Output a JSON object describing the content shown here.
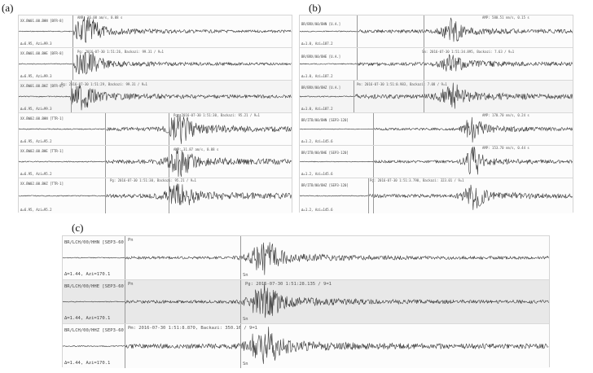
{
  "labels": {
    "a": "(a)",
    "b": "(b)",
    "c": "(c)"
  },
  "panel_a": {
    "rows": [
      {
        "name": "XX.BW01.00.BHN [BFR-8]",
        "info": "Δ=6.95, Azi=99.3",
        "picks": [
          {
            "text": "ANR: 36.00 am/s, 0.08 s"
          }
        ]
      },
      {
        "name": "XX.BW01.00.BHE [BFR-8]",
        "info": "Δ=6.95, Azi=99.3",
        "picks": [
          {
            "text": "Pg: 2016-07-30 1:51:26, Backazi: 99.31 / 9=1"
          }
        ]
      },
      {
        "name": "XX.BW01.00.BHZ [BFR-8]",
        "info": "Δ=6.95, Azi=99.3",
        "picks": [
          {
            "text": "Pg: 2016-07-30 1:51:29, Backazi: 99.31 / 9=1"
          }
        ]
      },
      {
        "name": "XX.BW02.00.BHN [TTR-1]",
        "info": "Δ=6.95, Azi=95.2",
        "picks": [
          {
            "text": "Pg: 2016-07-30 1:51:30, Backazi: 95.21 / 9=1"
          }
        ]
      },
      {
        "name": "XX.BW02.00.BHE [TTR-1]",
        "info": "Δ=6.95, Azi=95.2",
        "picks": [
          {
            "text": "AMP: 31.87 am/s, 0.08 s"
          }
        ]
      },
      {
        "name": "XX.BW02.00.BHZ [TTR-1]",
        "info": "Δ=6.95, Azi=95.2",
        "picks": [
          {
            "text": "Pg: 2016-07-30 1:51:30, Backazi: 95.21 / 9=1"
          }
        ]
      }
    ]
  },
  "panel_b": {
    "rows": [
      {
        "name": "BR/BRX/00/BHN [U.A.]",
        "info": "Δ=1.0, Azi=187.2",
        "picks": [
          {
            "text": "AMP: 580.51 nm/s, 0.15 s"
          }
        ]
      },
      {
        "name": "BR/BRX/00/BHE [U.A.]",
        "info": "Δ=1.0, Azi=187.2",
        "picks": [
          {
            "text": "Sm: 2016-07-30 1:51:34.895, Backazi: 7.63 / 9=1"
          }
        ]
      },
      {
        "name": "BR/BRX/00/BHZ [U.A.]",
        "info": "Δ=1.0, Azi=187.2",
        "picks": [
          {
            "text": "Pm: 2016-07-30 1:51:0.983, Backazi: 7.08 / 9=1"
          }
        ]
      },
      {
        "name": "BR/ITB/00/BHN [SEP3-120]",
        "info": "Δ=1.2, Azi=145.6",
        "picks": [
          {
            "text": "AMP: 170.70 nm/s, 0.24 s"
          }
        ]
      },
      {
        "name": "BR/ITB/00/BHE [SEP3-120]",
        "info": "Δ=1.2, Azi=145.6",
        "picks": [
          {
            "text": "AMP: 153.70 nm/s, 0.44 s"
          }
        ]
      },
      {
        "name": "BR/ITB/00/BHZ [SEP3-120]",
        "info": "Δ=1.2, Azi=145.6",
        "picks": [
          {
            "text": "Pg: 2016-07-30 1:51:3.790, Backazi: 323.01 / 9=1"
          }
        ]
      }
    ]
  },
  "panel_c": {
    "rows": [
      {
        "name": "BR/LCH/00/HHN [SEP3-60]",
        "info": "Δ=1.44, Azi=170.1",
        "pick_p": "Pn",
        "pick_s": "Sn",
        "annotation": ""
      },
      {
        "name": "BR/LCH/00/HHE [SEP3-60]",
        "info": "Δ=1.44, Azi=170.1",
        "pick_p": "Pn",
        "pick_s": "Sn",
        "annotation": "Pg: 2016-07-30 1:51:28.135 / 9=1"
      },
      {
        "name": "BR/LCH/00/HHZ [SEP3-60]",
        "info": "Δ=1.44, Azi=170.1",
        "pick_p": "Pn",
        "pick_s": "Sn",
        "annotation": "Pm: 2016-07-30 1:51:8.870, Backazi: 350.16 / 9=1"
      }
    ]
  },
  "colors": {
    "trace": "#3a3a3a",
    "pick": "#9a9a9a",
    "border": "#d4d4d4"
  }
}
